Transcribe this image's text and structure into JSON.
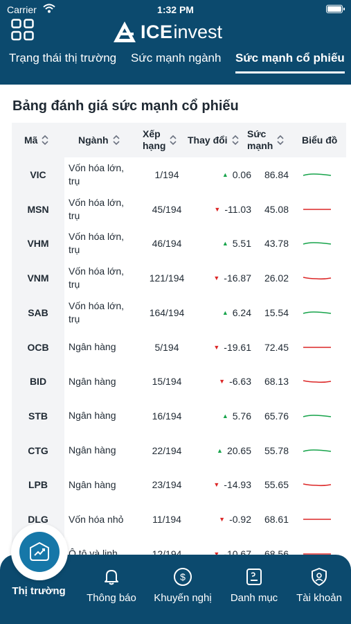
{
  "status_bar": {
    "carrier": "Carrier",
    "time": "1:32 PM"
  },
  "brand": {
    "ice": "ICE",
    "invest": "invest"
  },
  "tabs": [
    {
      "label": "Trạng thái thị trường"
    },
    {
      "label": "Sức mạnh ngành"
    },
    {
      "label": "Sức mạnh cổ phiếu"
    }
  ],
  "section_title": "Bảng đánh giá sức mạnh cổ phiếu",
  "table": {
    "headers": {
      "code": "Mã",
      "sector": "Ngành",
      "rank_1": "Xếp",
      "rank_2": "hạng",
      "change": "Thay đổi",
      "strength_1": "Sức",
      "strength_2": "mạnh",
      "chart": "Biểu đồ"
    },
    "rows": [
      {
        "code": "VIC",
        "sector": "Vốn hóa lớn, trụ",
        "rank": "1/194",
        "change": "0.06",
        "dir": "up",
        "strength": "86.84"
      },
      {
        "code": "MSN",
        "sector": "Vốn hóa lớn, trụ",
        "rank": "45/194",
        "change": "-11.03",
        "dir": "down",
        "strength": "45.08"
      },
      {
        "code": "VHM",
        "sector": "Vốn hóa lớn, trụ",
        "rank": "46/194",
        "change": "5.51",
        "dir": "up",
        "strength": "43.78"
      },
      {
        "code": "VNM",
        "sector": "Vốn hóa lớn, trụ",
        "rank": "121/194",
        "change": "-16.87",
        "dir": "down",
        "strength": "26.02"
      },
      {
        "code": "SAB",
        "sector": "Vốn hóa lớn, trụ",
        "rank": "164/194",
        "change": "6.24",
        "dir": "up",
        "strength": "15.54"
      },
      {
        "code": "OCB",
        "sector": "Ngân hàng",
        "rank": "5/194",
        "change": "-19.61",
        "dir": "down",
        "strength": "72.45"
      },
      {
        "code": "BID",
        "sector": "Ngân hàng",
        "rank": "15/194",
        "change": "-6.63",
        "dir": "down",
        "strength": "68.13"
      },
      {
        "code": "STB",
        "sector": "Ngân hàng",
        "rank": "16/194",
        "change": "5.76",
        "dir": "up",
        "strength": "65.76"
      },
      {
        "code": "CTG",
        "sector": "Ngân hàng",
        "rank": "22/194",
        "change": "20.65",
        "dir": "up",
        "strength": "55.78"
      },
      {
        "code": "LPB",
        "sector": "Ngân hàng",
        "rank": "23/194",
        "change": "-14.93",
        "dir": "down",
        "strength": "55.65"
      },
      {
        "code": "DLG",
        "sector": "Vốn hóa nhỏ",
        "rank": "11/194",
        "change": "-0.92",
        "dir": "down",
        "strength": "68.61"
      },
      {
        "code": "",
        "sector": "Ô tô và linh",
        "rank": "12/194",
        "change": "-10.67",
        "dir": "down",
        "strength": "68.56"
      }
    ]
  },
  "colors": {
    "header_bg": "#0c4a6e",
    "up": "#16a34a",
    "down": "#dc2626",
    "fab": "#1677a8"
  },
  "bottom_nav": [
    {
      "label": "Thị trường",
      "icon": "market-chart-icon",
      "active": true
    },
    {
      "label": "Thông báo",
      "icon": "bell-icon"
    },
    {
      "label": "Khuyến nghị",
      "icon": "dollar-circle-icon"
    },
    {
      "label": "Danh mục",
      "icon": "portfolio-icon"
    },
    {
      "label": "Tài khoản",
      "icon": "account-shield-icon"
    }
  ]
}
